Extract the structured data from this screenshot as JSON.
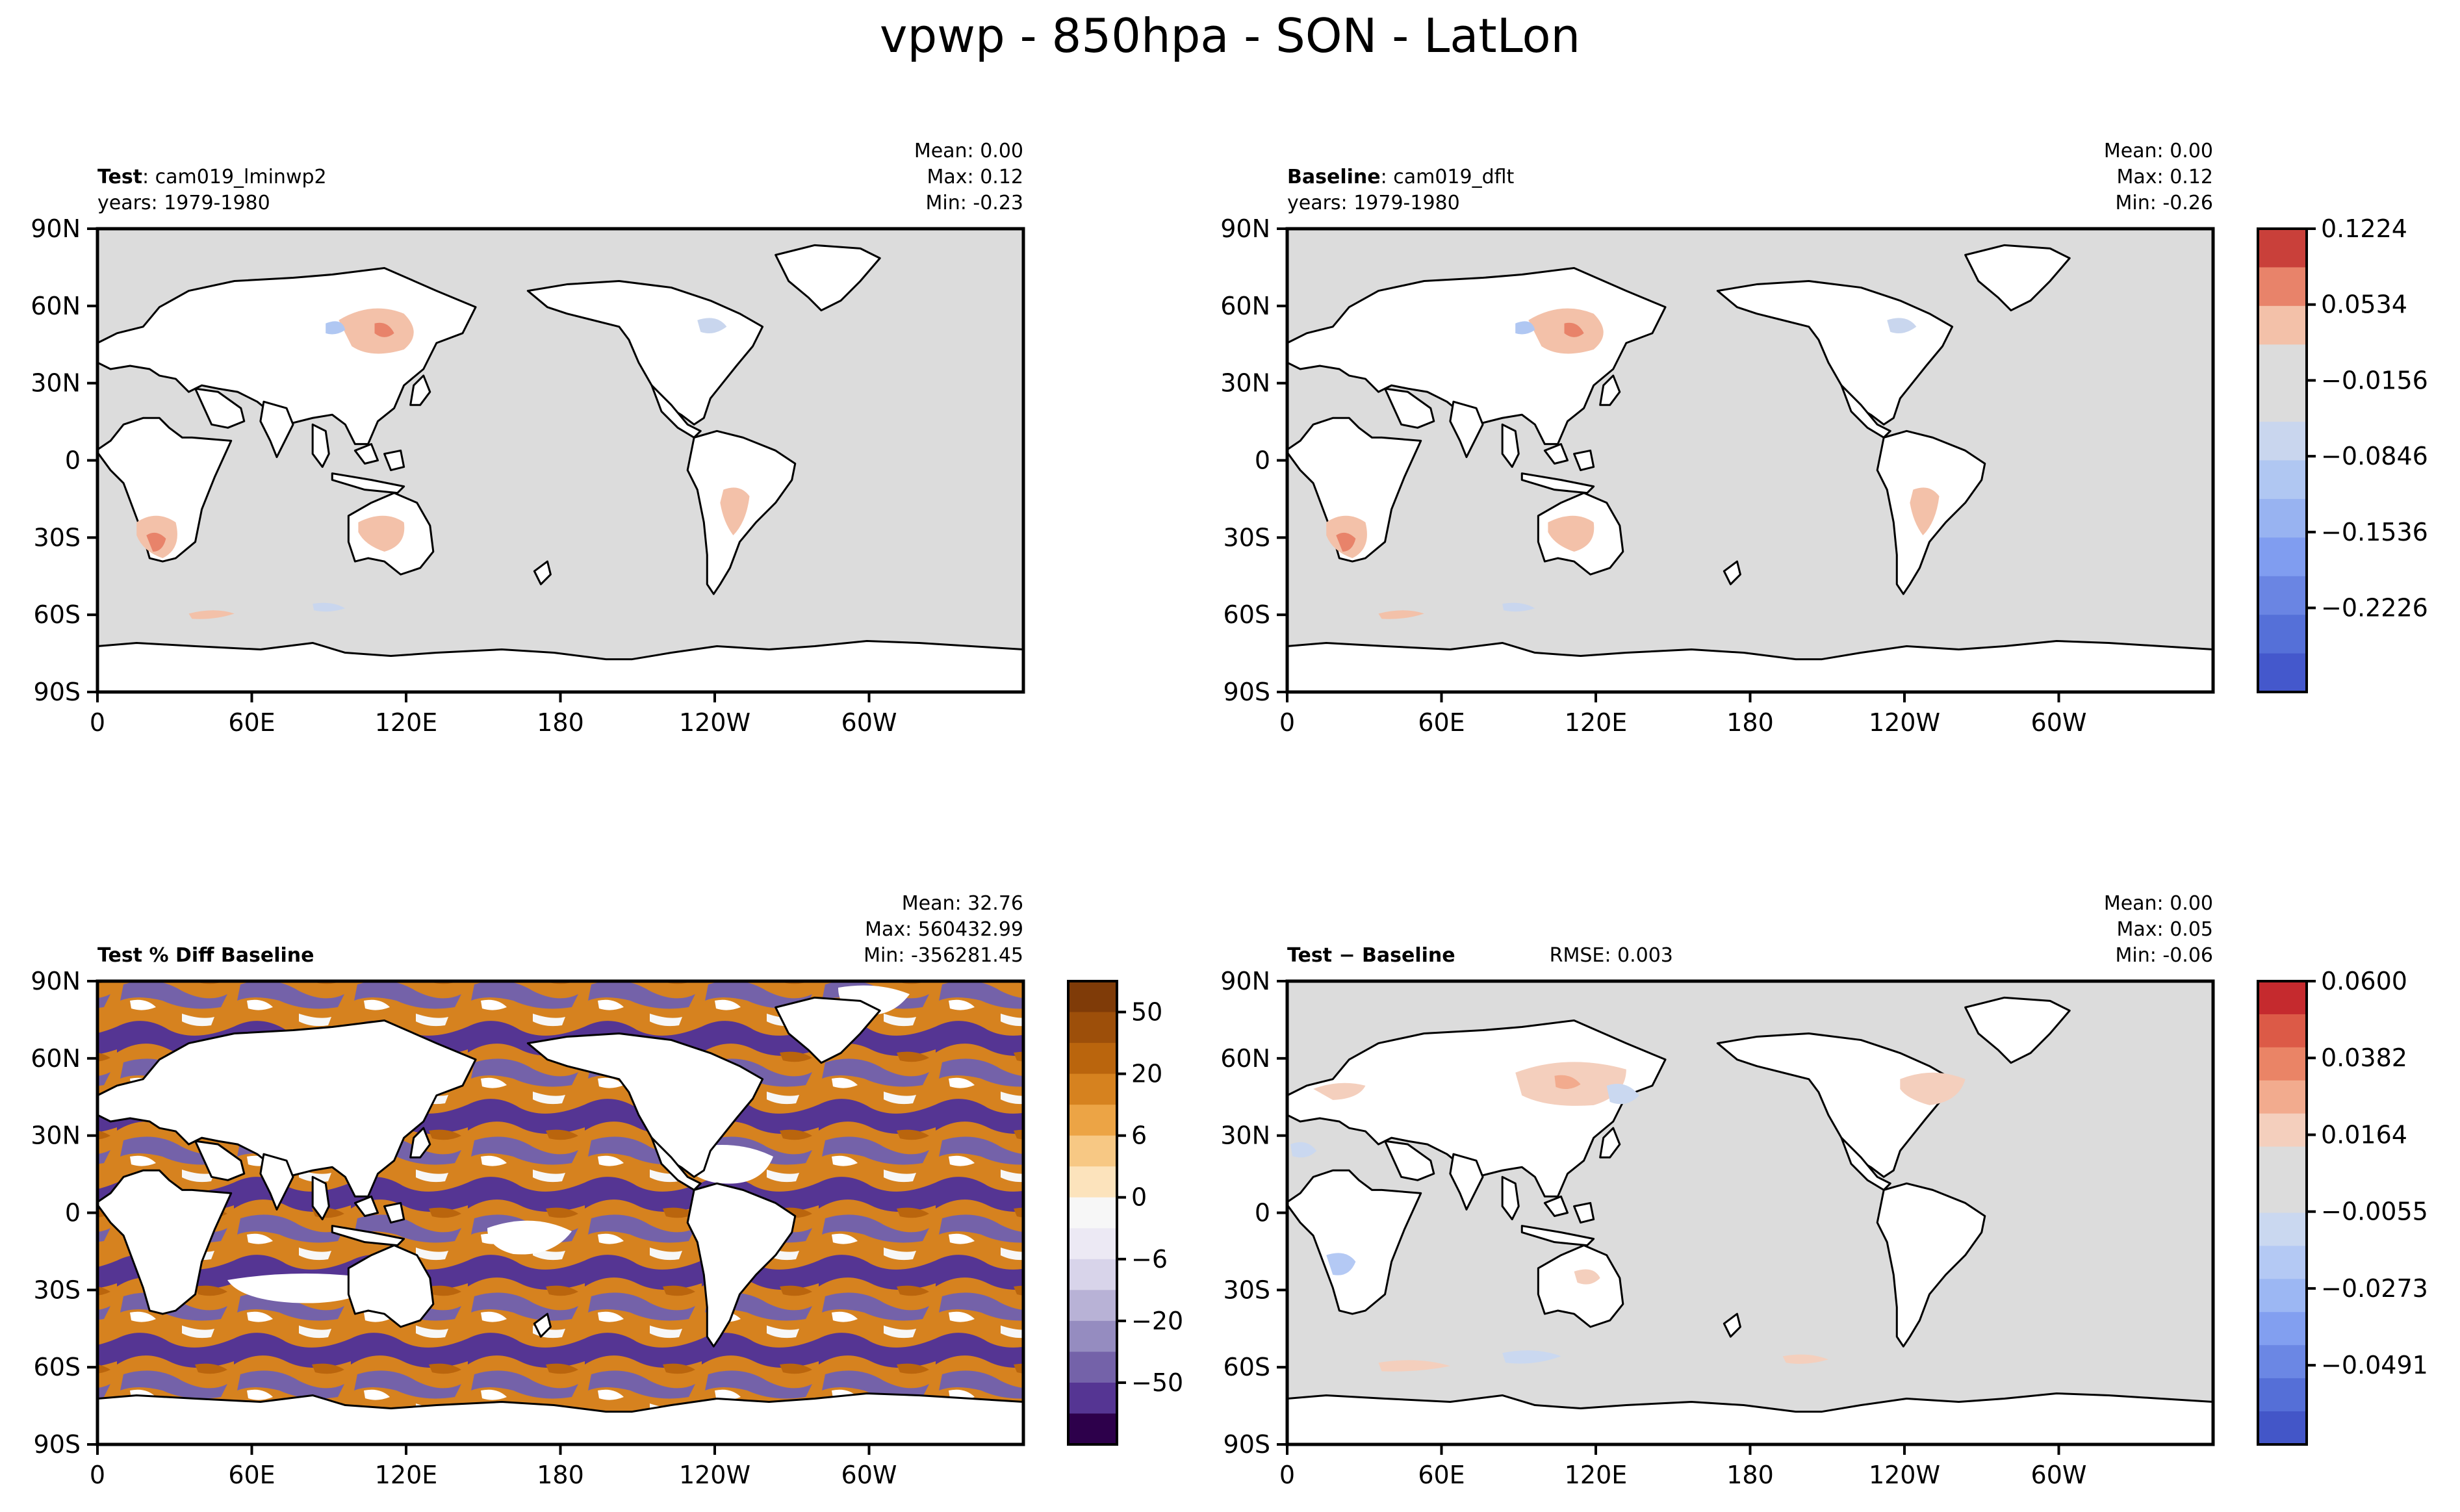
{
  "figure": {
    "title": "vpwp - 850hpa - SON - LatLon"
  },
  "colors": {
    "land_fill": "#ffffff",
    "ocean_fill": "#dcdcdc",
    "coast": "#000000"
  },
  "axes": {
    "lat_ticks": [
      "90N",
      "60N",
      "30N",
      "0",
      "30S",
      "60S",
      "90S"
    ],
    "lon_ticks": [
      "0",
      "60E",
      "120E",
      "180",
      "120W",
      "60W"
    ]
  },
  "panels": [
    {
      "id": "test",
      "label_bold": "Test",
      "label_rest": ": cam019_lminwp2",
      "years": "years: 1979-1980",
      "stats": [
        "Mean:  0.00",
        "Max:  0.12",
        "Min: -0.23"
      ],
      "rmse": ""
    },
    {
      "id": "baseline",
      "label_bold": "Baseline",
      "label_rest": ": cam019_dflt",
      "years": "years: 1979-1980",
      "stats": [
        "Mean:  0.00",
        "Max:  0.12",
        "Min: -0.26"
      ],
      "rmse": ""
    },
    {
      "id": "pctdiff",
      "label_bold": "Test % Diff Baseline",
      "label_rest": "",
      "years": "",
      "stats": [
        "Mean: 32.76",
        "Max: 560432.99",
        "Min: -356281.45"
      ],
      "rmse": ""
    },
    {
      "id": "diff",
      "label_bold": "Test − Baseline",
      "label_rest": "",
      "years": "",
      "stats": [
        "Mean:  0.00",
        "Max:  0.05",
        "Min: -0.06"
      ],
      "rmse": "RMSE: 0.003"
    }
  ],
  "colorbars": [
    {
      "id": "cb-main",
      "ticks": [
        "0.1224",
        "0.0534",
        "−0.0156",
        "−0.0846",
        "−0.1536",
        "−0.2226"
      ],
      "colors": [
        "#c9403a",
        "#e8836a",
        "#f3c1a9",
        "#dcdcdc",
        "#dcdcdc",
        "#c9d6ee",
        "#b0c7f2",
        "#98b3f1",
        "#809df0",
        "#6a85e3",
        "#5570d8",
        "#4458cc"
      ]
    },
    {
      "id": "cb-pct",
      "ticks": [
        "50",
        "20",
        "6",
        "0",
        "−6",
        "−20",
        "−50"
      ],
      "colors": [
        "#7f3b08",
        "#9d4f0a",
        "#ba650d",
        "#d6821f",
        "#eca445",
        "#f7c884",
        "#fce3bc",
        "#f7f7f7",
        "#ece9f4",
        "#d8d4ea",
        "#b8b2d6",
        "#958cc0",
        "#7462a9",
        "#553593",
        "#2d004b"
      ]
    },
    {
      "id": "cb-diff",
      "ticks": [
        "0.0600",
        "0.0382",
        "0.0164",
        "−0.0055",
        "−0.0273",
        "−0.0491"
      ],
      "colors": [
        "#c52a2e",
        "#dc5a47",
        "#ea8466",
        "#f2ab8e",
        "#f4cfbd",
        "#dcdcdc",
        "#dcdcdc",
        "#cad8f0",
        "#b4c9f4",
        "#9cb7f3",
        "#829ff0",
        "#6b87e4",
        "#556fd7",
        "#4356c8"
      ]
    }
  ]
}
